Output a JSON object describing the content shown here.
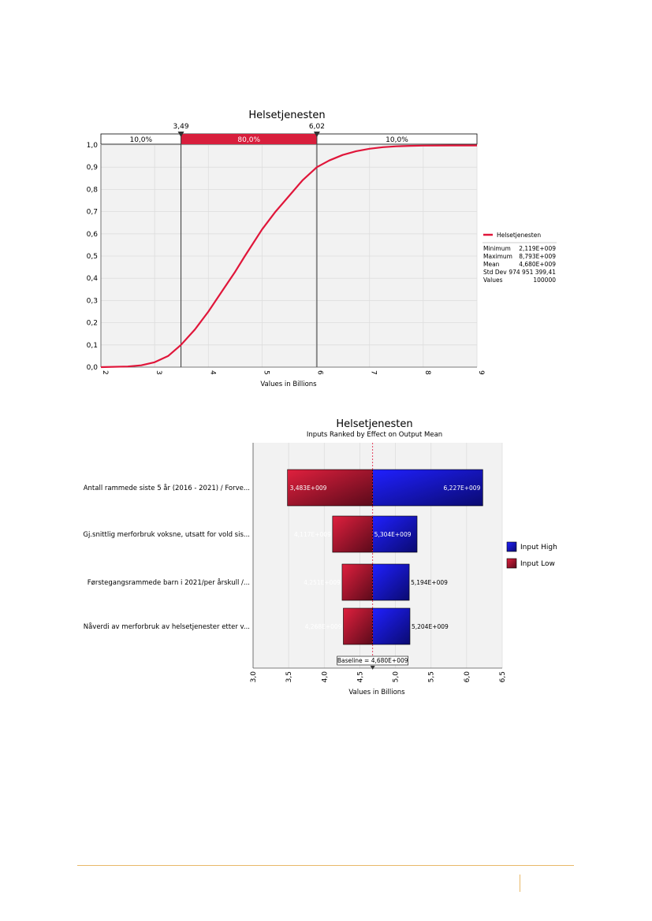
{
  "chart_data": [
    {
      "type": "line",
      "title": "Helsetjenesten",
      "xlabel": "Values in Billions",
      "ylabel": "",
      "xlim": [
        2,
        9
      ],
      "ylim": [
        0,
        1
      ],
      "x_ticks": [
        "2",
        "3",
        "4",
        "5",
        "6",
        "7",
        "8",
        "9"
      ],
      "y_ticks": [
        "0,0",
        "0,1",
        "0,2",
        "0,3",
        "0,4",
        "0,5",
        "0,6",
        "0,7",
        "0,8",
        "0,9",
        "1,0"
      ],
      "grid": true,
      "series": [
        {
          "name": "Helsetjenesten",
          "color": "#e0163a",
          "x": [
            2.0,
            2.5,
            2.75,
            3.0,
            3.25,
            3.49,
            3.75,
            4.0,
            4.25,
            4.5,
            4.68,
            5.0,
            5.25,
            5.5,
            5.75,
            6.02,
            6.25,
            6.5,
            6.75,
            7.0,
            7.25,
            7.5,
            7.75,
            8.0,
            8.5,
            9.0
          ],
          "y": [
            0.0,
            0.003,
            0.008,
            0.022,
            0.05,
            0.1,
            0.17,
            0.25,
            0.34,
            0.43,
            0.5,
            0.62,
            0.7,
            0.77,
            0.84,
            0.9,
            0.93,
            0.955,
            0.972,
            0.983,
            0.99,
            0.994,
            0.996,
            0.997,
            0.998,
            0.998
          ]
        }
      ],
      "markers": [
        {
          "label": "3,49",
          "x": 3.49
        },
        {
          "label": "6,02",
          "x": 6.02
        }
      ],
      "bands": [
        "10,0%",
        "80,0%",
        "10,0%"
      ],
      "band_color": "#d81e3c",
      "legend_position": "right",
      "stats": [
        {
          "label": "Minimum",
          "value": "2,119E+009"
        },
        {
          "label": "Maximum",
          "value": "8,793E+009"
        },
        {
          "label": "Mean",
          "value": "4,680E+009"
        },
        {
          "label": "Std Dev",
          "value": "974 951 399,41"
        },
        {
          "label": "Values",
          "value": "100000"
        }
      ]
    },
    {
      "type": "bar",
      "orientation": "horizontal",
      "title": "Helsetjenesten",
      "subtitle": "Inputs Ranked by Effect on Output Mean",
      "xlabel": "Values in Billions",
      "xlim": [
        3.0,
        6.5
      ],
      "x_ticks": [
        "3,0",
        "3,5",
        "4,0",
        "4,5",
        "5,0",
        "5,5",
        "6,0",
        "6,5"
      ],
      "baseline": 4.68,
      "baseline_label": "Baseline = 4,680E+009",
      "categories": [
        "Antall rammede siste 5 år (2016 - 2021) / Forve...",
        "Gj.snittlig merforbruk voksne, utsatt for vold sis...",
        "Førstegangsrammede barn i 2021/per årskull /...",
        "Nåverdi av merforbruk av helsetjenester etter v..."
      ],
      "series": [
        {
          "name": "Input Low",
          "color": "#c8173a",
          "values": [
            3.483,
            4.117,
            4.251,
            4.268
          ],
          "labels": [
            "3,483E+009",
            "4,117E+009",
            "4,251E+009",
            "4,268E+009"
          ]
        },
        {
          "name": "Input High",
          "color": "#1010e0",
          "values": [
            6.227,
            5.304,
            5.194,
            5.204
          ],
          "labels": [
            "6,227E+009",
            "5,304E+009",
            "5,194E+009",
            "5,204E+009"
          ]
        }
      ],
      "legend_position": "right",
      "grid": true
    }
  ]
}
